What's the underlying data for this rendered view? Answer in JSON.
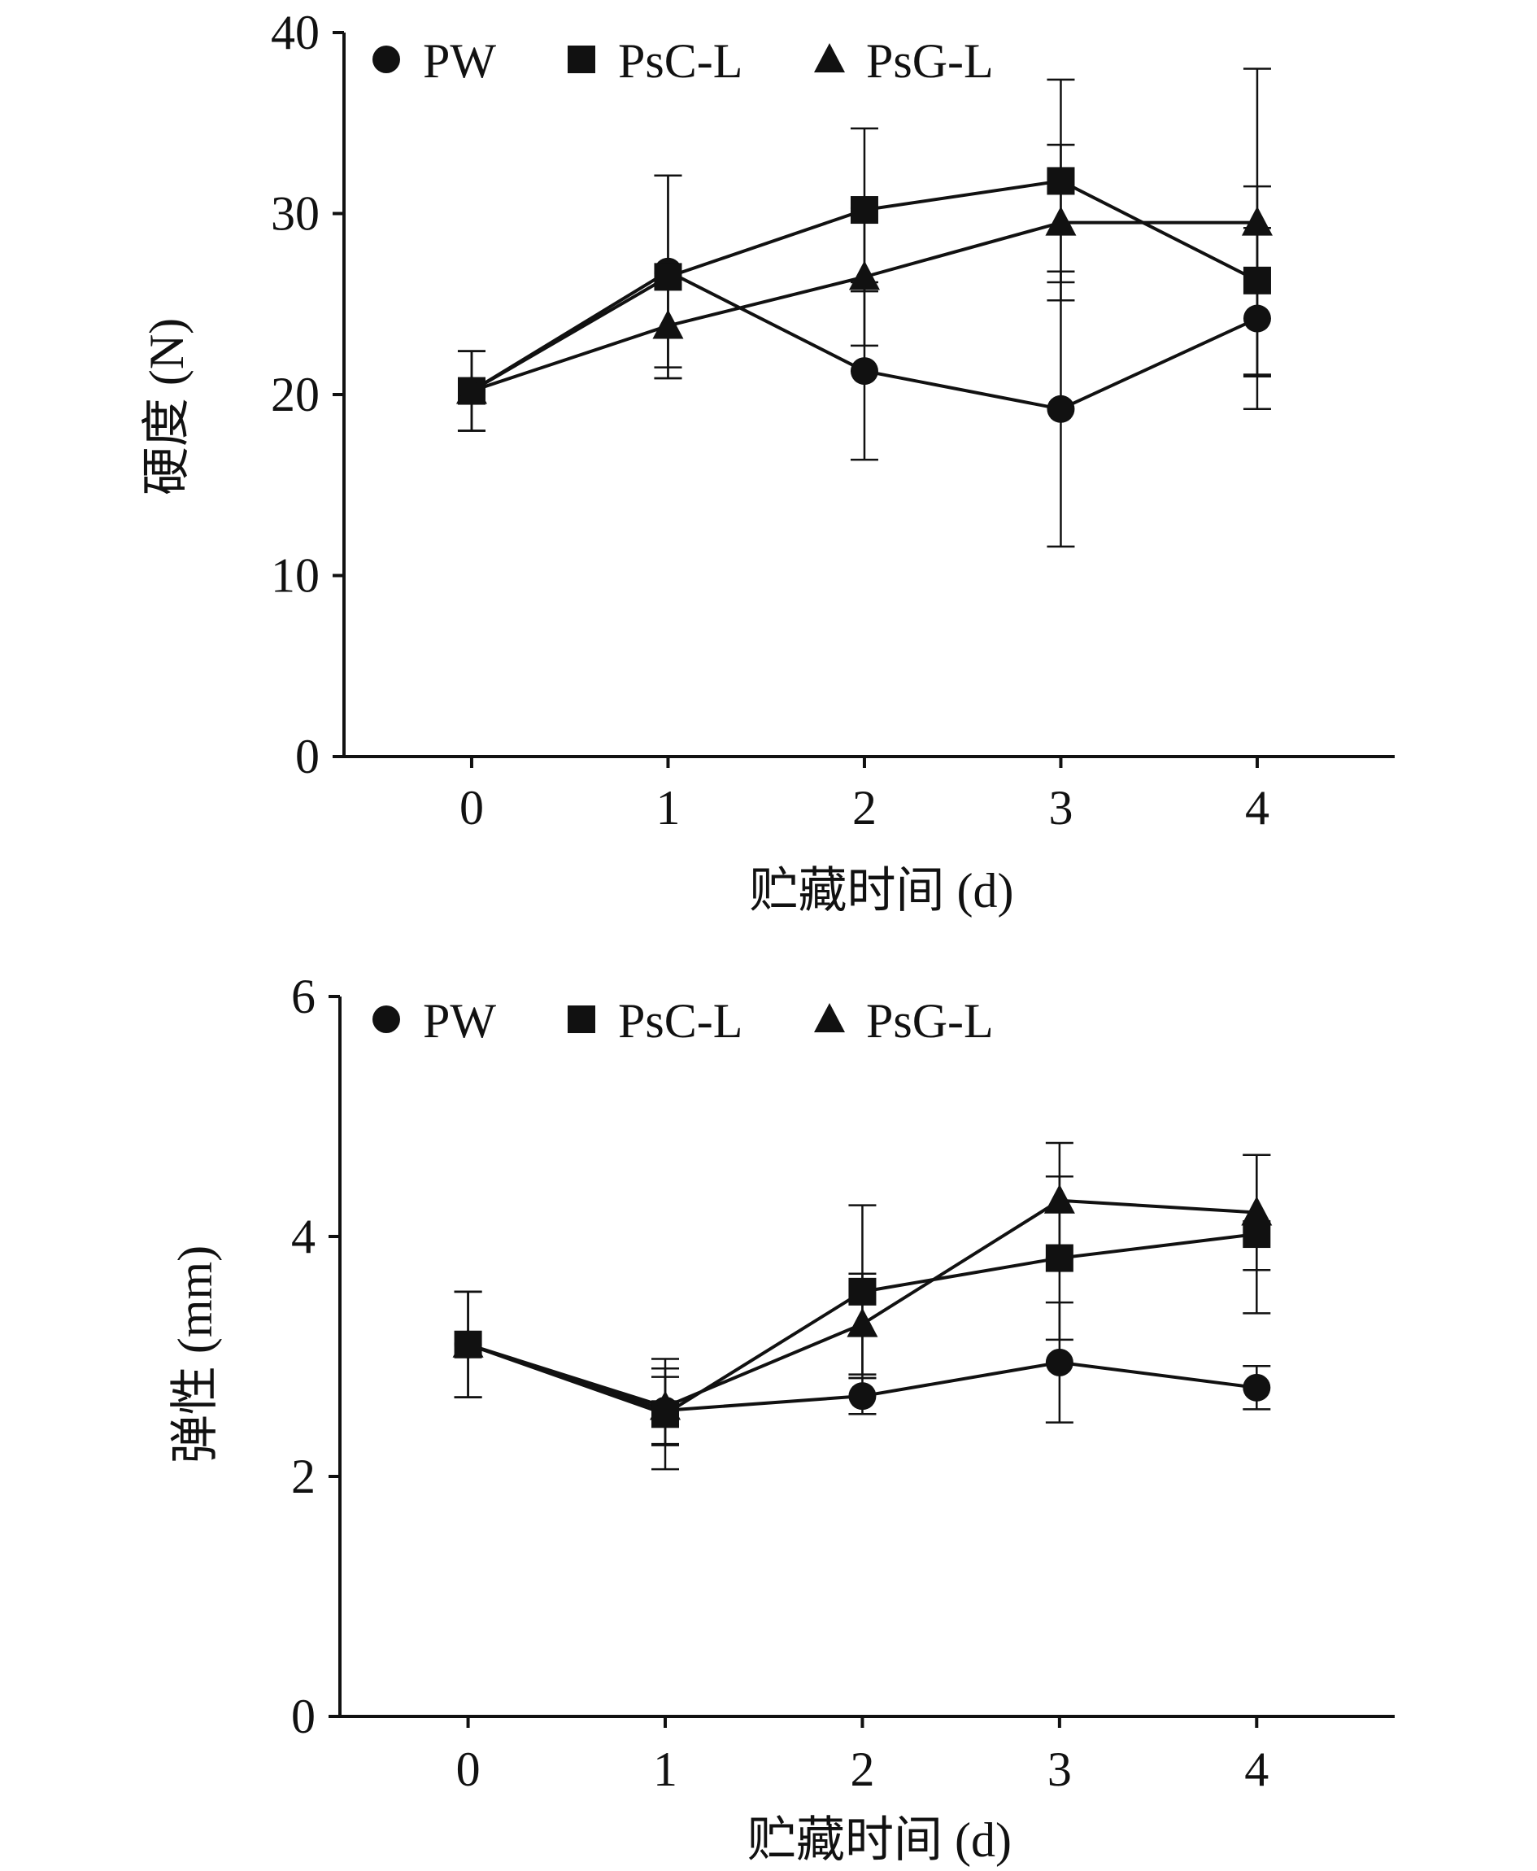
{
  "chart_data": [
    {
      "type": "line",
      "title": "",
      "xlabel": "贮藏时间 (d)",
      "ylabel": "硬度 (N)",
      "x": [
        0,
        1,
        2,
        3,
        4
      ],
      "x_tick_labels": [
        "0",
        "1",
        "2",
        "3",
        "4"
      ],
      "y_tick_labels": [
        "0",
        "10",
        "20",
        "30",
        "40"
      ],
      "xlim": [
        -0.65,
        4.7
      ],
      "ylim": [
        0,
        40
      ],
      "grid": false,
      "legend_position": "top-left",
      "series": [
        {
          "name": "PW",
          "marker": "circle",
          "values": [
            20.2,
            26.8,
            21.3,
            19.2,
            24.2
          ],
          "errors": [
            2.2,
            5.3,
            4.9,
            7.6,
            5.0
          ]
        },
        {
          "name": "PsC-L",
          "marker": "square",
          "values": [
            20.2,
            26.5,
            30.2,
            31.8,
            26.3
          ],
          "errors": [
            2.2,
            5.6,
            4.5,
            5.6,
            5.2
          ]
        },
        {
          "name": "PsG-L",
          "marker": "triangle",
          "values": [
            20.2,
            23.8,
            26.5,
            29.5,
            29.5
          ],
          "errors": [
            2.2,
            2.9,
            3.8,
            4.3,
            8.5
          ]
        }
      ]
    },
    {
      "type": "line",
      "title": "",
      "xlabel": "贮藏时间 (d)",
      "ylabel": "弹性 (mm)",
      "x": [
        0,
        1,
        2,
        3,
        4
      ],
      "x_tick_labels": [
        "0",
        "1",
        "2",
        "3",
        "4"
      ],
      "y_tick_labels": [
        "0",
        "2",
        "4",
        "6"
      ],
      "xlim": [
        -0.65,
        4.7
      ],
      "ylim": [
        0,
        6
      ],
      "grid": false,
      "legend_position": "top-left",
      "series": [
        {
          "name": "PW",
          "marker": "circle",
          "values": [
            3.1,
            2.55,
            2.67,
            2.95,
            2.74
          ],
          "errors": [
            0.44,
            0.28,
            0.15,
            0.5,
            0.18
          ]
        },
        {
          "name": "PsC-L",
          "marker": "square",
          "values": [
            3.1,
            2.52,
            3.54,
            3.82,
            4.02
          ],
          "errors": [
            0.44,
            0.46,
            0.72,
            0.68,
            0.66
          ]
        },
        {
          "name": "PsG-L",
          "marker": "triangle",
          "values": [
            3.1,
            2.58,
            3.27,
            4.3,
            4.2
          ],
          "errors": [
            0.44,
            0.32,
            0.42,
            0.48,
            0.48
          ]
        }
      ]
    }
  ]
}
